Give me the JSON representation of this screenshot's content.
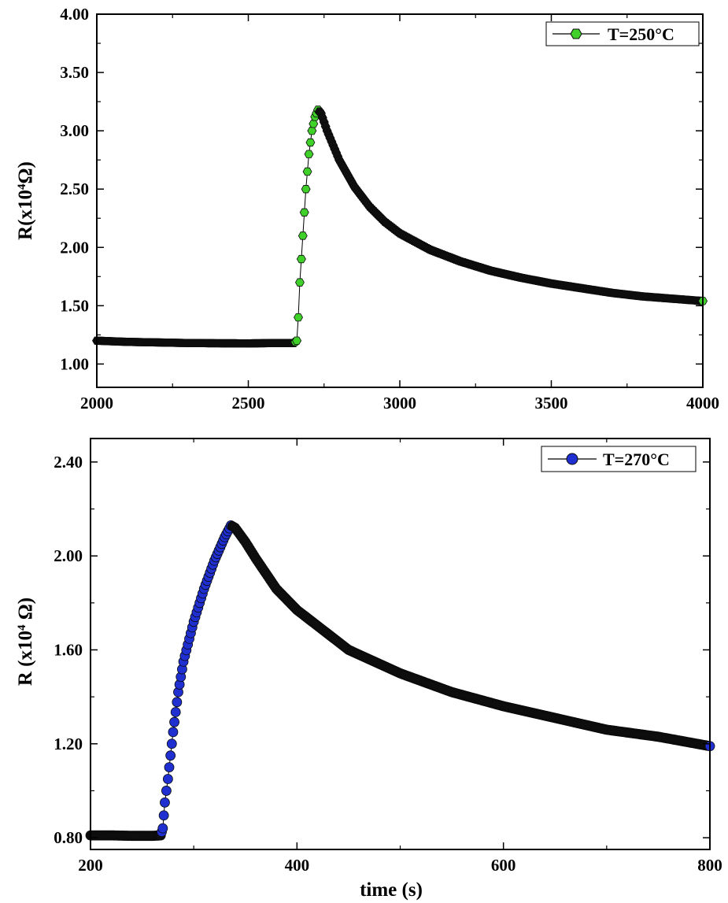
{
  "chart_data": [
    {
      "type": "scatter",
      "ylabel": {
        "prefix": "R(x10",
        "sup": "4",
        "suffix": "Ω)"
      },
      "xlabel": "",
      "xlim": [
        2000,
        4000
      ],
      "ylim": [
        0.8,
        4.0
      ],
      "xticks": [
        2000,
        2500,
        3000,
        3500,
        4000
      ],
      "xtick_labels": [
        "2000",
        "2500",
        "3000",
        "3500",
        "4000"
      ],
      "yticks": [
        1.0,
        1.5,
        2.0,
        2.5,
        3.0,
        3.5,
        4.0
      ],
      "ytick_labels": [
        "1.00",
        "1.50",
        "2.00",
        "2.50",
        "3.00",
        "3.50",
        "4.00"
      ],
      "legend_position": "top-right",
      "grid": false,
      "series": [
        {
          "name": "T=250°C",
          "marker": "hexagon",
          "color": "#3fd12a",
          "edge_color": "#0a0a0a",
          "x": [
            2000,
            2100,
            2200,
            2300,
            2400,
            2500,
            2600,
            2650,
            2660,
            2665,
            2670,
            2680,
            2690,
            2700,
            2710,
            2720,
            2730,
            2740,
            2760,
            2800,
            2850,
            2900,
            2950,
            3000,
            3100,
            3200,
            3300,
            3400,
            3500,
            3600,
            3700,
            3800,
            3900,
            4000
          ],
          "y": [
            1.2,
            1.19,
            1.185,
            1.18,
            1.178,
            1.177,
            1.18,
            1.18,
            1.2,
            1.4,
            1.7,
            2.1,
            2.5,
            2.8,
            3.0,
            3.12,
            3.18,
            3.15,
            3.0,
            2.75,
            2.52,
            2.35,
            2.22,
            2.12,
            1.98,
            1.88,
            1.8,
            1.74,
            1.69,
            1.65,
            1.61,
            1.58,
            1.56,
            1.54
          ]
        }
      ]
    },
    {
      "type": "scatter",
      "ylabel": {
        "prefix": "R (x10",
        "sup": "4",
        "suffix": " Ω)"
      },
      "xlabel": "time (s)",
      "xlim": [
        200,
        800
      ],
      "ylim": [
        0.75,
        2.5
      ],
      "xticks": [
        200,
        400,
        600,
        800
      ],
      "xtick_labels": [
        "200",
        "400",
        "600",
        "800"
      ],
      "yticks": [
        0.8,
        1.2,
        1.6,
        2.0,
        2.4
      ],
      "ytick_labels": [
        "0.80",
        "1.20",
        "1.60",
        "2.00",
        "2.40"
      ],
      "legend_position": "top-right",
      "grid": false,
      "series": [
        {
          "name": "T=270°C",
          "marker": "circle",
          "color": "#1f2fd0",
          "edge_color": "#0a0a0a",
          "x": [
            200,
            220,
            240,
            260,
            268,
            270,
            272,
            275,
            280,
            285,
            290,
            300,
            310,
            320,
            330,
            336,
            340,
            350,
            360,
            380,
            400,
            450,
            500,
            550,
            600,
            650,
            700,
            750,
            800
          ],
          "y": [
            0.81,
            0.81,
            0.808,
            0.808,
            0.81,
            0.84,
            0.95,
            1.05,
            1.25,
            1.42,
            1.55,
            1.72,
            1.86,
            1.98,
            2.08,
            2.13,
            2.12,
            2.06,
            1.99,
            1.86,
            1.77,
            1.6,
            1.5,
            1.42,
            1.36,
            1.31,
            1.26,
            1.23,
            1.19
          ]
        }
      ]
    }
  ]
}
